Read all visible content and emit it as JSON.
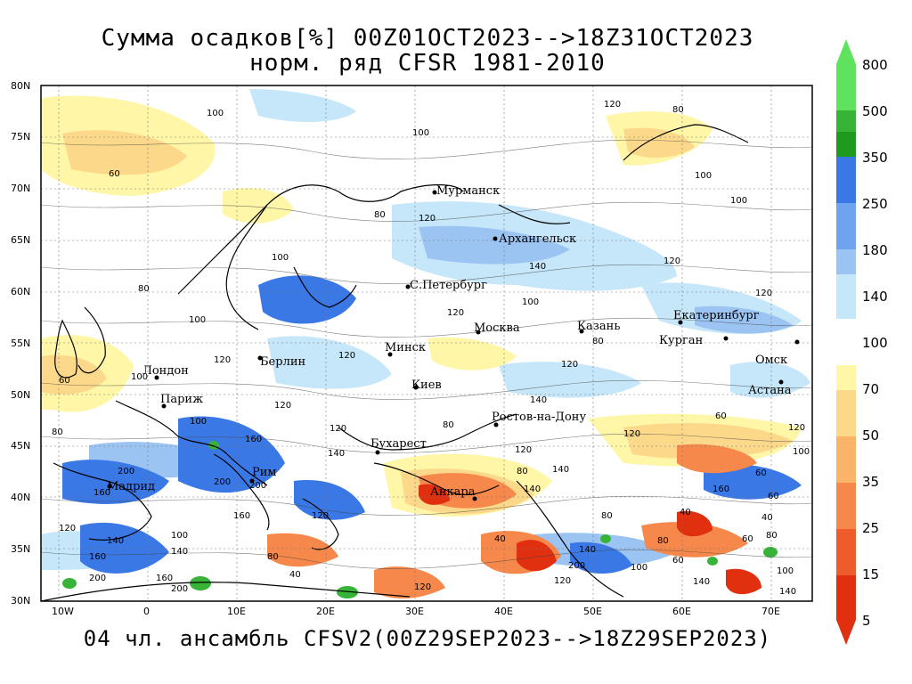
{
  "title": {
    "line1": "Сумма осадков[%] 00Z01OCT2023-->18Z31OCT2023",
    "line2": "норм. ряд CFSR 1981-2010"
  },
  "bottom_title": "04 чл. ансамбль CFSV2(00Z29SEP2023-->18Z29SEP2023)",
  "axes": {
    "lat_labels": [
      "80N",
      "75N",
      "70N",
      "65N",
      "60N",
      "55N",
      "50N",
      "45N",
      "40N",
      "35N",
      "30N"
    ],
    "lon_labels": [
      "10W",
      "0",
      "10E",
      "20E",
      "30E",
      "40E",
      "50E",
      "60E",
      "70E"
    ]
  },
  "cities": [
    {
      "name": "Мурманск"
    },
    {
      "name": "Архангельск"
    },
    {
      "name": "С.Петербург"
    },
    {
      "name": "Москва"
    },
    {
      "name": "Казань"
    },
    {
      "name": "Екатеринбург"
    },
    {
      "name": "Курган"
    },
    {
      "name": "Омск"
    },
    {
      "name": "Астана"
    },
    {
      "name": "Минск"
    },
    {
      "name": "Киев"
    },
    {
      "name": "Берлин"
    },
    {
      "name": "Лондон"
    },
    {
      "name": "Париж"
    },
    {
      "name": "Рим"
    },
    {
      "name": "Мадрид"
    },
    {
      "name": "Бухарест"
    },
    {
      "name": "Анкара"
    },
    {
      "name": "Ростов-на-Дону"
    }
  ],
  "contour_labels": [
    "100",
    "120",
    "80",
    "60",
    "140",
    "160",
    "200",
    "40"
  ],
  "legend": {
    "upper": [
      {
        "label": "800",
        "color": "#5fe35f"
      },
      {
        "label": "500",
        "color": "#37b437"
      },
      {
        "label": "350",
        "color": "#1e9b1e"
      },
      {
        "label": "250",
        "color": "#3a78e6"
      },
      {
        "label": "180",
        "color": "#6fa3ee"
      },
      {
        "label": "140",
        "color": "#9cc4f2"
      },
      {
        "label": "",
        "color": "#c6e6f9"
      }
    ],
    "mid_label": "100",
    "lower": [
      {
        "label": "70",
        "color": "#fff6a8"
      },
      {
        "label": "50",
        "color": "#fcd98a"
      },
      {
        "label": "35",
        "color": "#f9b46a"
      },
      {
        "label": "25",
        "color": "#f5884a"
      },
      {
        "label": "15",
        "color": "#ef5c2b"
      },
      {
        "label": "5",
        "color": "#e0300f"
      }
    ],
    "bottom_label": "5"
  },
  "colors": {
    "wet_light": "#c6e6f9",
    "wet_mid": "#9cc4f2",
    "wet_dark": "#3a78e6",
    "wet_extreme": "#37b437",
    "dry_light": "#fff6a8",
    "dry_mid": "#fcd98a",
    "dry_orange": "#f5884a",
    "dry_red": "#e0300f"
  }
}
